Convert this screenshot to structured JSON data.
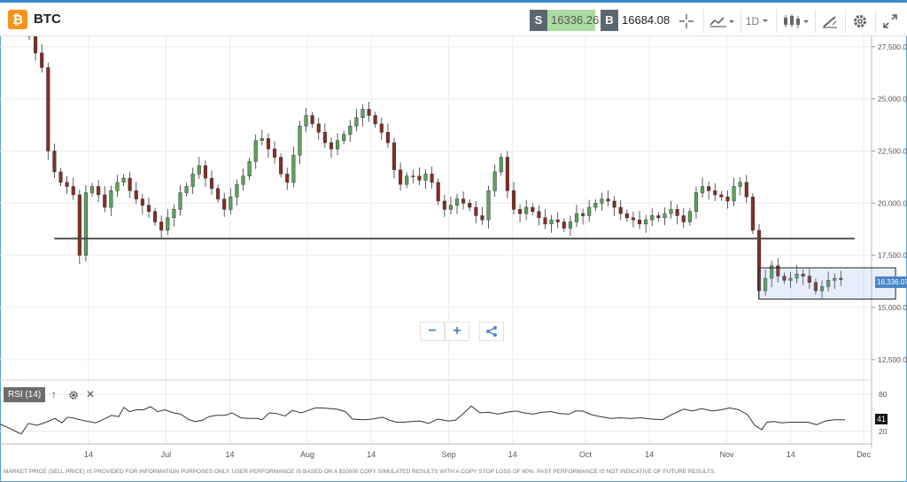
{
  "header": {
    "asset": "BTC",
    "asset_icon": "bitcoin-icon",
    "sell_tag": "S",
    "sell_price": "16336.26",
    "buy_tag": "B",
    "buy_price": "16684.08",
    "interval": "1D",
    "tools": [
      "crosshair-icon",
      "indicator-icon",
      "interval-select",
      "candlestick-type-icon",
      "draw-tool-icon",
      "gear-icon",
      "fullscreen-icon"
    ]
  },
  "indicator": {
    "label": "RSI (14)",
    "tick_labels": [
      "80",
      "20"
    ],
    "current": "41"
  },
  "current_price_label": "16,336.07",
  "disclaimer": "MARKET PRICE (SELL PRICE) IS PROVIDED FOR INFORMATION PURPOSES ONLY. USER PERFORMANCE IS BASED ON A $10000 COPY SIMULATED RESULTS WITH A COPY STOP LOSS OF 60%. PAST PERFORMANCE IS NOT INDICATIVE OF FUTURE RESULTS.",
  "colors": {
    "up": "#5aa55a",
    "down": "#8b2b22",
    "accent": "#4a86c8"
  },
  "chart_data": {
    "type": "candlestick",
    "title": "",
    "xlabel": "",
    "ylabel": "",
    "x_tick_labels": [
      "14",
      "Jul",
      "14",
      "Aug",
      "14",
      "Sep",
      "14",
      "Oct",
      "14",
      "Nov",
      "14",
      "Dec"
    ],
    "x_tick_day": [
      13,
      30,
      44,
      61,
      75,
      92,
      106,
      122,
      136,
      153,
      167,
      183
    ],
    "y_tick_labels": [
      "27,500.00",
      "25,000.00",
      "22,500.00",
      "20,000.00",
      "17,500.00",
      "15,000.00",
      "12,500.00"
    ],
    "y_tick_values": [
      27500,
      25000,
      22500,
      20000,
      17500,
      15000,
      12500
    ],
    "ylim": [
      11600,
      28000
    ],
    "grid": true,
    "close_anchors": [
      [
        0,
        28000
      ],
      [
        1,
        27200
      ],
      [
        2,
        26500
      ],
      [
        3,
        22500
      ],
      [
        4,
        21500
      ],
      [
        5,
        21000
      ],
      [
        6,
        20800
      ],
      [
        7,
        20400
      ],
      [
        8,
        17500
      ],
      [
        9,
        20500
      ],
      [
        10,
        20800
      ],
      [
        11,
        20400
      ],
      [
        12,
        19800
      ],
      [
        13,
        20600
      ],
      [
        14,
        21000
      ],
      [
        15,
        21200
      ],
      [
        16,
        20600
      ],
      [
        17,
        20200
      ],
      [
        18,
        19900
      ],
      [
        19,
        19600
      ],
      [
        20,
        19100
      ],
      [
        21,
        18700
      ],
      [
        22,
        19300
      ],
      [
        23,
        19700
      ],
      [
        24,
        20500
      ],
      [
        25,
        20800
      ],
      [
        26,
        21400
      ],
      [
        27,
        21800
      ],
      [
        28,
        21200
      ],
      [
        29,
        20700
      ],
      [
        30,
        20200
      ],
      [
        31,
        19700
      ],
      [
        32,
        20300
      ],
      [
        33,
        20900
      ],
      [
        34,
        21300
      ],
      [
        35,
        22000
      ],
      [
        36,
        23000
      ],
      [
        37,
        23100
      ],
      [
        38,
        22600
      ],
      [
        39,
        22200
      ],
      [
        40,
        21400
      ],
      [
        41,
        21000
      ],
      [
        42,
        22300
      ],
      [
        43,
        23700
      ],
      [
        44,
        24200
      ],
      [
        45,
        23800
      ],
      [
        46,
        23400
      ],
      [
        47,
        22900
      ],
      [
        48,
        22600
      ],
      [
        49,
        23000
      ],
      [
        50,
        23300
      ],
      [
        51,
        23700
      ],
      [
        52,
        24100
      ],
      [
        53,
        24500
      ],
      [
        54,
        24200
      ],
      [
        55,
        23800
      ],
      [
        56,
        23400
      ],
      [
        57,
        22900
      ],
      [
        58,
        21600
      ],
      [
        59,
        20900
      ],
      [
        60,
        21300
      ],
      [
        61,
        21300
      ],
      [
        62,
        21100
      ],
      [
        63,
        21400
      ],
      [
        64,
        21000
      ],
      [
        65,
        20100
      ],
      [
        66,
        19700
      ],
      [
        67,
        19900
      ],
      [
        68,
        20200
      ],
      [
        69,
        20000
      ],
      [
        70,
        19800
      ],
      [
        71,
        19400
      ],
      [
        72,
        19200
      ],
      [
        73,
        20600
      ],
      [
        74,
        21500
      ],
      [
        75,
        22200
      ],
      [
        76,
        20600
      ],
      [
        77,
        19700
      ],
      [
        78,
        19500
      ],
      [
        79,
        19800
      ],
      [
        80,
        19600
      ],
      [
        81,
        19300
      ],
      [
        82,
        19000
      ],
      [
        83,
        19200
      ],
      [
        84,
        19100
      ],
      [
        85,
        18800
      ],
      [
        86,
        19100
      ],
      [
        87,
        19500
      ],
      [
        88,
        19400
      ],
      [
        89,
        19800
      ],
      [
        90,
        20000
      ],
      [
        91,
        20200
      ],
      [
        92,
        20100
      ],
      [
        93,
        19800
      ],
      [
        94,
        19500
      ],
      [
        95,
        19300
      ],
      [
        96,
        19200
      ],
      [
        97,
        19000
      ],
      [
        98,
        19200
      ],
      [
        99,
        19400
      ],
      [
        100,
        19300
      ],
      [
        101,
        19500
      ],
      [
        102,
        19700
      ],
      [
        103,
        19400
      ],
      [
        104,
        19100
      ],
      [
        105,
        19600
      ],
      [
        106,
        20500
      ],
      [
        107,
        20800
      ],
      [
        108,
        20600
      ],
      [
        109,
        20400
      ],
      [
        110,
        20300
      ],
      [
        111,
        20100
      ],
      [
        112,
        20800
      ],
      [
        113,
        21000
      ],
      [
        114,
        20300
      ],
      [
        115,
        18700
      ],
      [
        116,
        15800
      ],
      [
        117,
        16400
      ],
      [
        118,
        17000
      ],
      [
        119,
        16500
      ],
      [
        120,
        16300
      ],
      [
        121,
        16400
      ],
      [
        122,
        16600
      ],
      [
        123,
        16500
      ],
      [
        124,
        16200
      ],
      [
        125,
        15800
      ],
      [
        126,
        16000
      ],
      [
        127,
        16300
      ],
      [
        128,
        16400
      ],
      [
        129,
        16336
      ]
    ],
    "support_line": 18300,
    "range_box": {
      "from_day": 160,
      "to_day": 190,
      "high": 16900,
      "low": 15400
    },
    "rsi": {
      "ylim": [
        0,
        100
      ],
      "ticks": [
        80,
        20
      ],
      "anchors": [
        [
          0,
          32
        ],
        [
          8,
          27
        ],
        [
          18,
          20
        ],
        [
          24,
          16
        ],
        [
          32,
          33
        ],
        [
          42,
          30
        ],
        [
          52,
          35
        ],
        [
          62,
          41
        ],
        [
          70,
          34
        ],
        [
          76,
          43
        ],
        [
          82,
          42
        ],
        [
          90,
          39
        ],
        [
          100,
          36
        ],
        [
          108,
          34
        ],
        [
          116,
          39
        ],
        [
          126,
          46
        ],
        [
          134,
          44
        ],
        [
          140,
          59
        ],
        [
          146,
          52
        ],
        [
          154,
          55
        ],
        [
          162,
          55
        ],
        [
          170,
          60
        ],
        [
          178,
          52
        ],
        [
          186,
          55
        ],
        [
          196,
          50
        ],
        [
          204,
          48
        ],
        [
          212,
          40
        ],
        [
          220,
          36
        ],
        [
          228,
          38
        ],
        [
          236,
          44
        ],
        [
          244,
          46
        ],
        [
          254,
          46
        ],
        [
          262,
          50
        ],
        [
          272,
          42
        ],
        [
          280,
          41
        ],
        [
          290,
          41
        ],
        [
          296,
          39
        ],
        [
          304,
          50
        ],
        [
          312,
          49
        ],
        [
          322,
          45
        ],
        [
          330,
          54
        ],
        [
          340,
          50
        ],
        [
          348,
          54
        ],
        [
          356,
          58
        ],
        [
          364,
          58
        ],
        [
          372,
          57
        ],
        [
          380,
          56
        ],
        [
          390,
          52
        ],
        [
          398,
          40
        ],
        [
          410,
          39
        ],
        [
          420,
          40
        ],
        [
          432,
          43
        ],
        [
          440,
          38
        ],
        [
          448,
          35
        ],
        [
          456,
          35
        ],
        [
          464,
          36
        ],
        [
          474,
          37
        ],
        [
          484,
          33
        ],
        [
          494,
          40
        ],
        [
          506,
          37
        ],
        [
          514,
          38
        ],
        [
          524,
          50
        ],
        [
          532,
          61
        ],
        [
          542,
          50
        ],
        [
          552,
          51
        ],
        [
          562,
          48
        ],
        [
          572,
          51
        ],
        [
          582,
          53
        ],
        [
          592,
          50
        ],
        [
          602,
          48
        ],
        [
          612,
          51
        ],
        [
          622,
          52
        ],
        [
          632,
          49
        ],
        [
          642,
          48
        ],
        [
          650,
          53
        ],
        [
          658,
          53
        ],
        [
          668,
          47
        ],
        [
          678,
          44
        ],
        [
          690,
          41
        ],
        [
          700,
          42
        ],
        [
          712,
          41
        ],
        [
          724,
          42
        ],
        [
          736,
          40
        ],
        [
          748,
          39
        ],
        [
          758,
          47
        ],
        [
          772,
          56
        ],
        [
          782,
          53
        ],
        [
          792,
          57
        ],
        [
          804,
          53
        ],
        [
          814,
          55
        ],
        [
          824,
          58
        ],
        [
          834,
          55
        ],
        [
          844,
          47
        ],
        [
          852,
          30
        ],
        [
          860,
          23
        ],
        [
          866,
          35
        ],
        [
          874,
          36
        ],
        [
          882,
          34
        ],
        [
          892,
          35
        ],
        [
          902,
          35
        ],
        [
          912,
          35
        ],
        [
          922,
          31
        ],
        [
          932,
          37
        ],
        [
          942,
          39
        ],
        [
          954,
          39
        ]
      ]
    }
  }
}
